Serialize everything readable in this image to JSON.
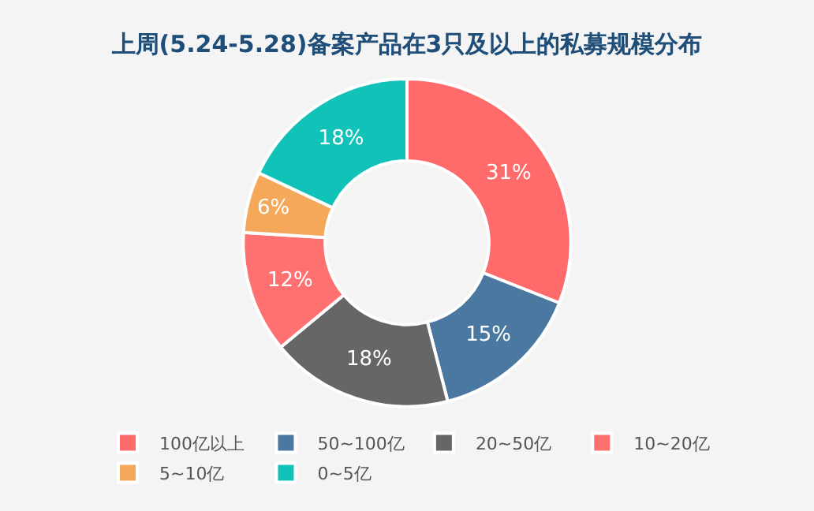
{
  "chart_data": {
    "type": "donut",
    "title": "上周(5.24-5.28)备案产品在3只及以上的私募规模分布",
    "categories": [
      "100亿以上",
      "50~100亿",
      "20~50亿",
      "10~20亿",
      "5~10亿",
      "0~5亿"
    ],
    "values": [
      31,
      15,
      18,
      12,
      6,
      18
    ],
    "colors": [
      "#ff6a6a",
      "#4a78a0",
      "#666666",
      "#ff7070",
      "#f5a85a",
      "#10c2b8"
    ],
    "value_labels": [
      "31%",
      "15%",
      "18%",
      "12%",
      "6%",
      "18%"
    ],
    "legend": "bottom"
  }
}
